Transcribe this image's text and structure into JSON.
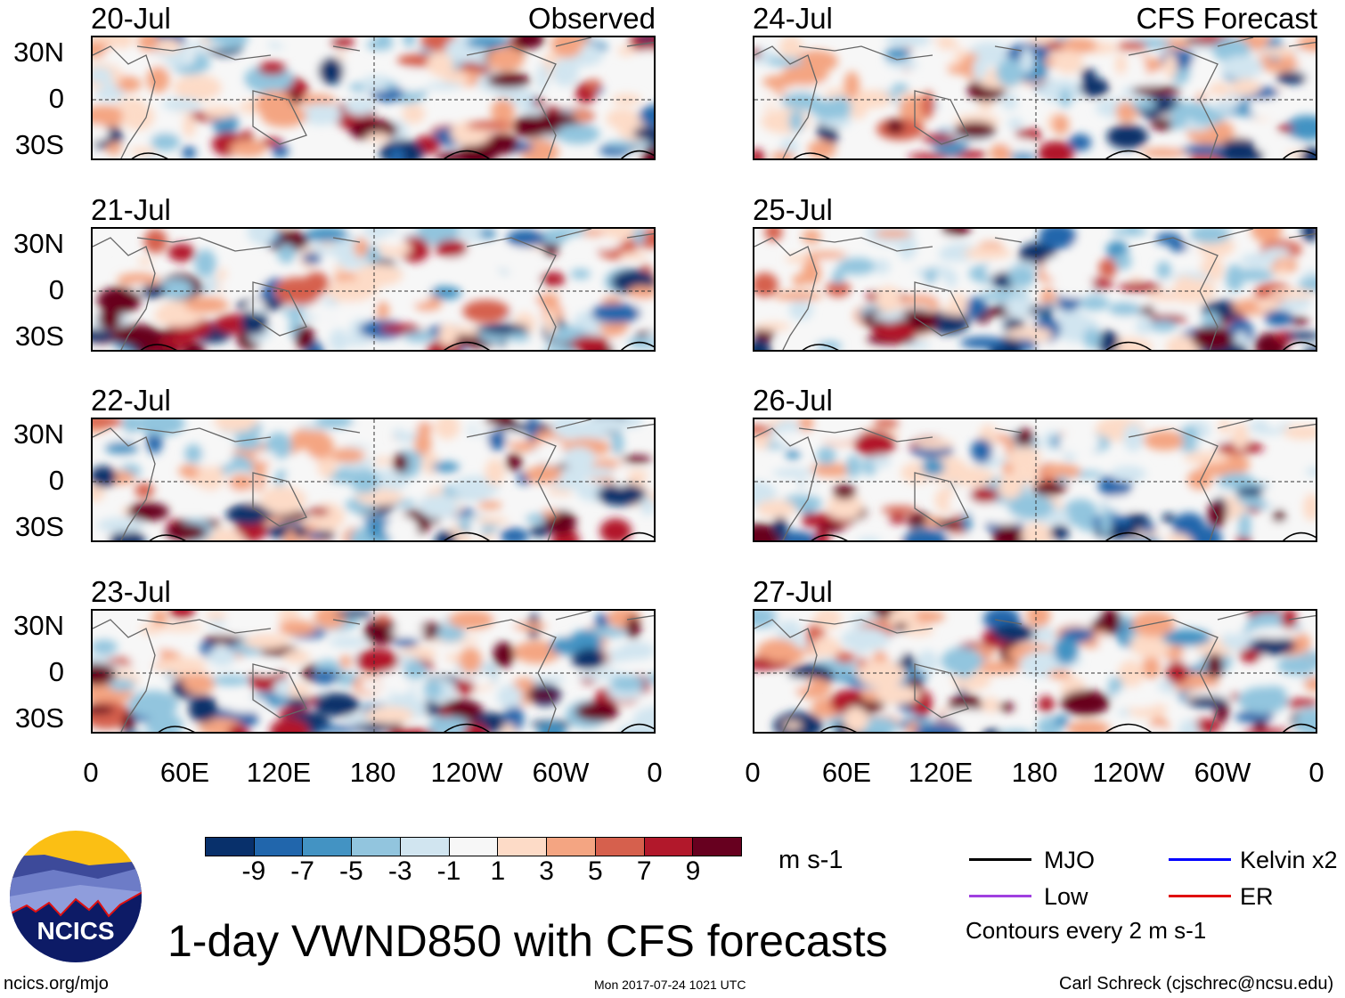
{
  "header": {
    "left_title": "Observed",
    "right_title": "CFS Forecast"
  },
  "panels": {
    "observed": [
      {
        "date": "20-Jul"
      },
      {
        "date": "21-Jul"
      },
      {
        "date": "22-Jul"
      },
      {
        "date": "23-Jul"
      }
    ],
    "forecast": [
      {
        "date": "24-Jul"
      },
      {
        "date": "25-Jul"
      },
      {
        "date": "26-Jul"
      },
      {
        "date": "27-Jul"
      }
    ]
  },
  "axes": {
    "lat_labels": [
      "30N",
      "0",
      "30S"
    ],
    "lon_labels": [
      "0",
      "60E",
      "120E",
      "180",
      "120W",
      "60W",
      "0"
    ]
  },
  "colorbar": {
    "labels": [
      "-9",
      "-7",
      "-5",
      "-3",
      "-1",
      "1",
      "3",
      "5",
      "7",
      "9"
    ],
    "colors": [
      "#08306b",
      "#2166ac",
      "#4393c3",
      "#92c5de",
      "#d1e5f0",
      "#f7f7f7",
      "#fddbc7",
      "#f4a582",
      "#d6604d",
      "#b2182b",
      "#67001f"
    ],
    "units": "m s-1"
  },
  "legend": {
    "items": [
      {
        "label": "MJO",
        "color": "#000000"
      },
      {
        "label": "Kelvin x2",
        "color": "#0000ff"
      },
      {
        "label": "Low",
        "color": "#a040e0"
      },
      {
        "label": "ER",
        "color": "#e01010"
      }
    ],
    "note": "Contours every 2 m s-1"
  },
  "footer": {
    "title": "1-day VWND850 with CFS forecasts",
    "url": "ncics.org/mjo",
    "timestamp": "Mon 2017-07-24 1021 UTC",
    "credit": "Carl Schreck (cjschrec@ncsu.edu)",
    "logo_text": "NCICS"
  }
}
